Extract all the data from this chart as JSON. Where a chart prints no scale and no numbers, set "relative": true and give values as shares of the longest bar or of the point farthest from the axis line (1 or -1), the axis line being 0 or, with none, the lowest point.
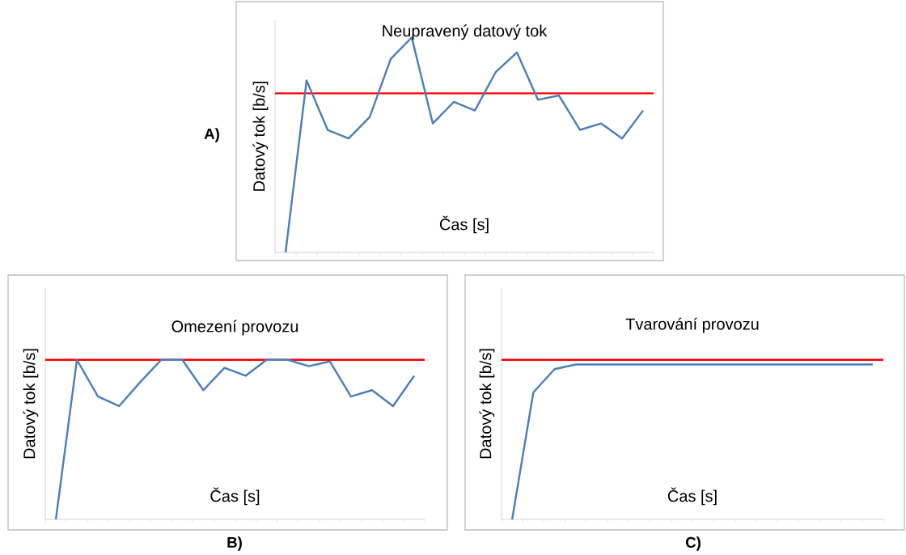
{
  "chart_data": [
    {
      "type": "line",
      "title": "Neupravený datový tok",
      "xlabel": "Čas [s]",
      "ylabel": "Datový tok [b/s]",
      "relative": true,
      "annotations": [
        "A)"
      ],
      "categories": [
        null,
        null,
        null,
        null,
        null,
        null,
        null,
        null,
        null,
        null,
        null,
        null,
        null,
        null,
        null,
        null,
        null,
        null
      ],
      "series": [
        {
          "color": "#4a7ebb",
          "values": [
            0,
            0.8,
            0.57,
            0.53,
            0.63,
            0.9,
            1,
            0.6,
            0.7,
            0.66,
            0.84,
            0.93,
            0.71,
            0.73,
            0.57,
            0.6,
            0.53,
            0.66
          ]
        }
      ],
      "ref_lines": [
        {
          "axis": "y",
          "value": 0.74,
          "color": "#ff0000"
        }
      ]
    },
    {
      "type": "line",
      "title": "Omezení provozu",
      "xlabel": "Čas [s]",
      "ylabel": "Datový tok [b/s]",
      "relative": true,
      "annotations": [
        "B)"
      ],
      "categories": [
        null,
        null,
        null,
        null,
        null,
        null,
        null,
        null,
        null,
        null,
        null,
        null,
        null,
        null,
        null,
        null,
        null,
        null
      ],
      "series": [
        {
          "color": "#4a7ebb",
          "values": [
            0,
            1,
            0.77,
            0.71,
            0.86,
            1,
            1,
            0.81,
            0.95,
            0.9,
            1,
            1,
            0.96,
            0.99,
            0.77,
            0.81,
            0.71,
            0.9
          ]
        }
      ],
      "ref_lines": [
        {
          "axis": "y",
          "value": 1,
          "color": "#ff0000"
        }
      ]
    },
    {
      "type": "line",
      "title": "Tvarování provozu",
      "xlabel": "Čas [s]",
      "ylabel": "Datový tok [b/s]",
      "relative": true,
      "annotations": [
        "C)"
      ],
      "categories": [
        null,
        null,
        null,
        null,
        null,
        null,
        null,
        null,
        null,
        null,
        null,
        null,
        null,
        null,
        null,
        null,
        null,
        null
      ],
      "series": [
        {
          "color": "#4a7ebb",
          "values": [
            0,
            0.82,
            0.97,
            1,
            1,
            1,
            1,
            1,
            1,
            1,
            1,
            1,
            1,
            1,
            1,
            1,
            1,
            1
          ]
        }
      ],
      "ref_lines": [
        {
          "axis": "y",
          "value": 1.03,
          "color": "#ff0000"
        }
      ]
    }
  ]
}
